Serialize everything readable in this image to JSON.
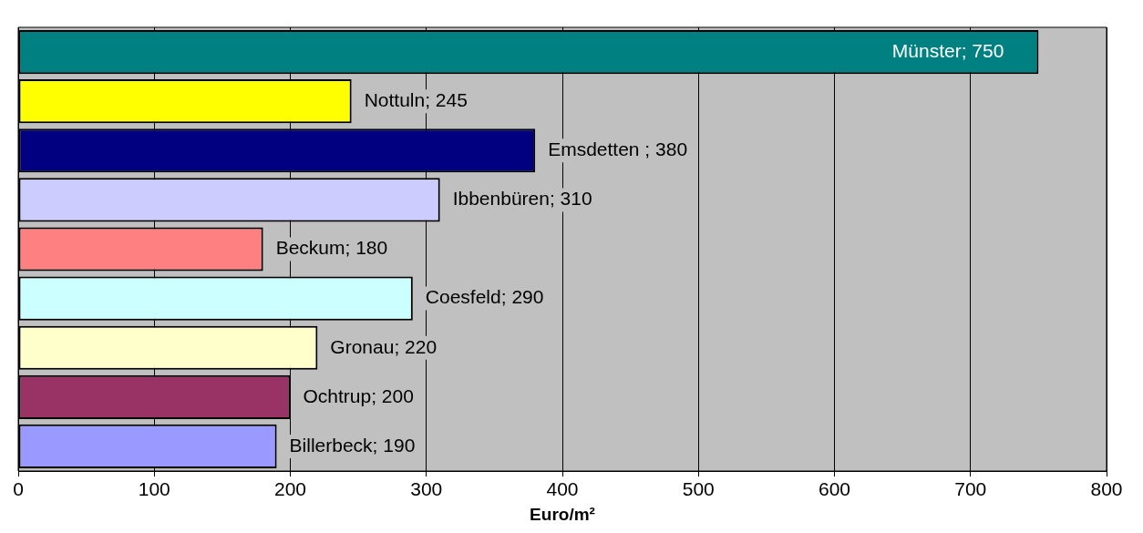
{
  "chart_data": {
    "type": "bar",
    "orientation": "horizontal",
    "xlabel": "Euro/m²",
    "categories": [
      null,
      null,
      null,
      null,
      null,
      null,
      null,
      null,
      null
    ],
    "values": [
      750,
      245,
      380,
      310,
      180,
      290,
      220,
      200,
      190
    ],
    "colors": [
      "#008080",
      "#ffff00",
      "#000080",
      "#ccccff",
      "#ff8080",
      "#ccffff",
      "#ffffcc",
      "#993366",
      "#9999ff"
    ],
    "value_labels": [
      "Münster; 750",
      "Nottuln; 245",
      "Emsdetten ; 380",
      "Ibbenbüren; 310",
      "Beckum; 180",
      "Coesfeld; 290",
      "Gronau; 220",
      "Ochtrup; 200",
      "Billerbeck; 190"
    ],
    "xlim": [
      0,
      800
    ],
    "xticks": [
      0,
      100,
      200,
      300,
      400,
      500,
      600,
      700,
      800
    ],
    "grid": "x",
    "tick_labels": "x",
    "legend": false
  }
}
